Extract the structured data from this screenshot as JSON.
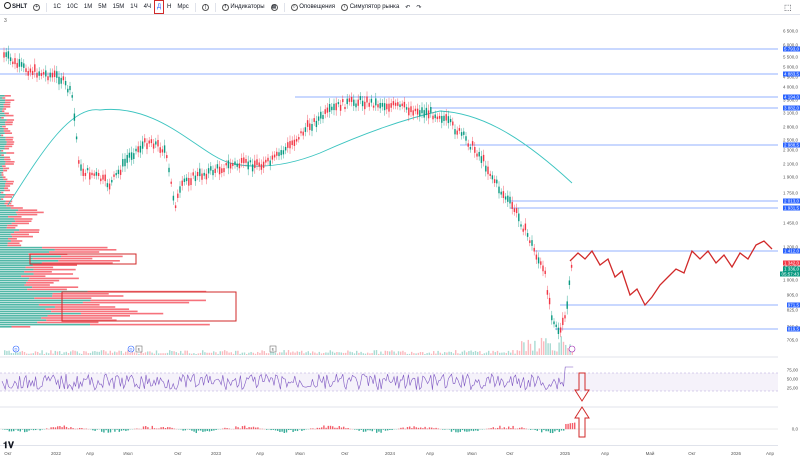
{
  "toolbar": {
    "symbol": "SHLT",
    "timeframes": [
      "1С",
      "10С",
      "1М",
      "5М",
      "15М",
      "1Ч",
      "4Ч",
      "Д",
      "Н",
      "Мрс"
    ],
    "active_timeframe": "Д",
    "indicators_label": "Индикаторы",
    "alerts_label": "Оповещения",
    "replay_label": "Симулятор рынка"
  },
  "pane_marker": "3",
  "price_axis": {
    "ticks": [
      "6 500,0",
      "6 000,0",
      "5 500,0",
      "5 000,0",
      "4 500,0",
      "4 000,0",
      "3 500,0",
      "3 100,0",
      "2 800,0",
      "2 500,0",
      "2 300,0",
      "2 100,0",
      "1 900,0",
      "1 750,0",
      "1 600,0",
      "1 450,0",
      "1 200,0",
      "1 085,0",
      "1 000,0",
      "905,0",
      "825,0",
      "765,0",
      "705,0"
    ],
    "tags": [
      {
        "label": "5 793,0",
        "color": "#2962ff"
      },
      {
        "label": "4 883,5",
        "color": "#2962ff"
      },
      {
        "label": "4 194,0",
        "color": "#2962ff"
      },
      {
        "label": "3 882,0",
        "color": "#2962ff"
      },
      {
        "label": "2 988,5",
        "color": "#2962ff"
      },
      {
        "label": "2 013,0",
        "color": "#2962ff"
      },
      {
        "label": "1 931,5",
        "color": "#2962ff"
      },
      {
        "label": "1 412,0",
        "color": "#2962ff"
      },
      {
        "label": "1 342,0",
        "color": "#f23645"
      },
      {
        "label": "1 336,0",
        "color": "#089981"
      },
      {
        "label": "05:57:43",
        "color": "#089981"
      },
      {
        "label": "971,5",
        "color": "#2962ff"
      },
      {
        "label": "819,5",
        "color": "#2962ff"
      }
    ]
  },
  "rsi_axis": [
    "75,00",
    "50,00",
    "25,00"
  ],
  "macd_axis": [
    "0,0"
  ],
  "date_axis": [
    "Окт",
    "2022",
    "Апр",
    "Июл",
    "Окт",
    "2023",
    "Апр",
    "Июл",
    "Окт",
    "2024",
    "Апр",
    "Июл",
    "Окт",
    "2025",
    "Апр",
    "Май",
    "Окт",
    "2026",
    "Апр"
  ],
  "event_badges": [
    "D",
    "D",
    "E",
    "E"
  ],
  "colors": {
    "up": "#089981",
    "down": "#f23645",
    "level": "#2962ff",
    "ma": "#3cc4c0",
    "forecast": "#d12a2a",
    "highlight": "#d12a2a"
  }
}
